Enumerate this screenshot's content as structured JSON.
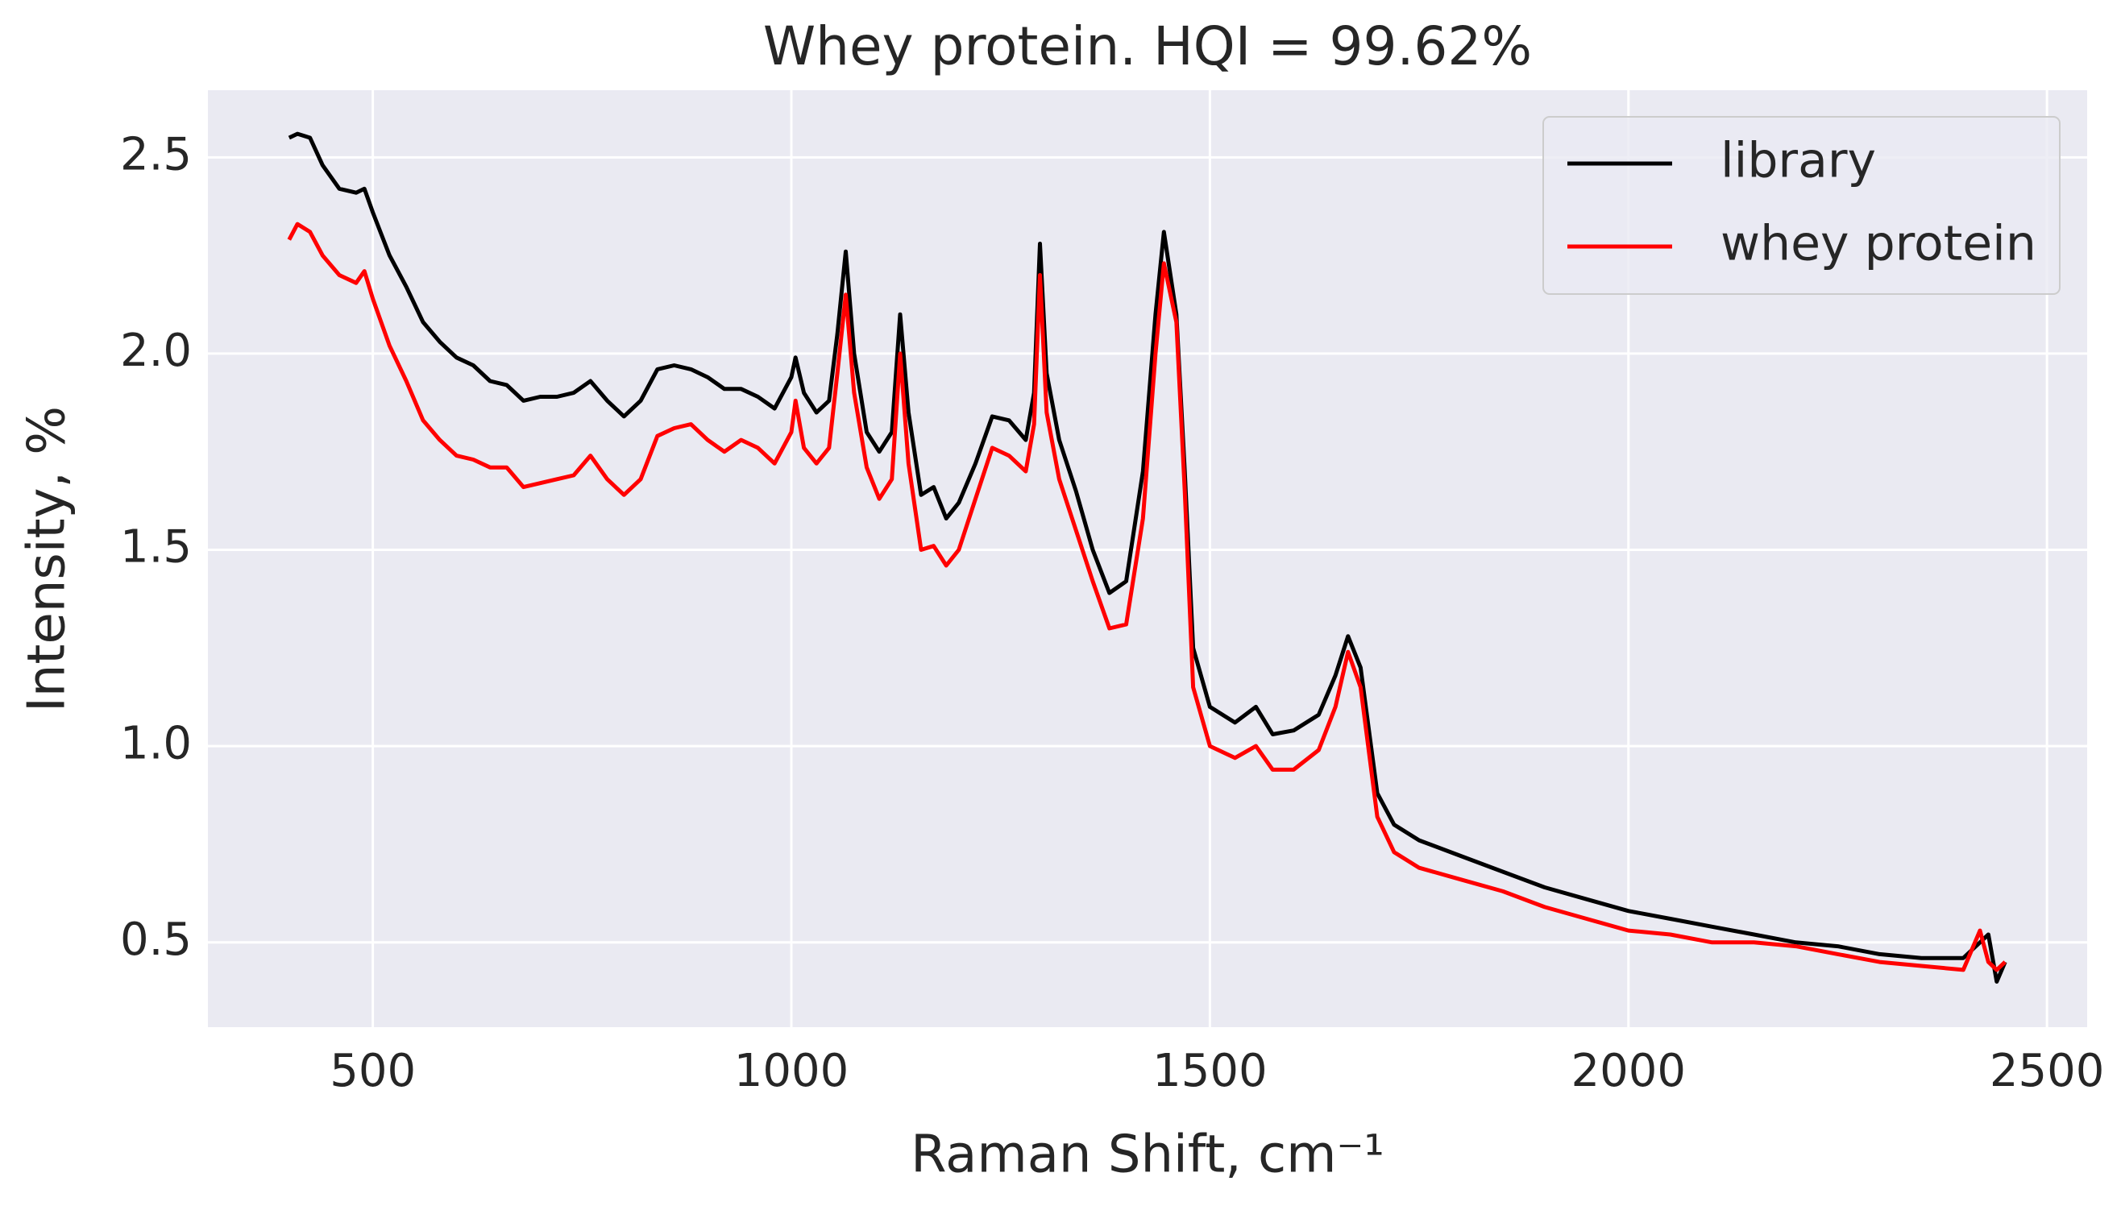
{
  "chart_data": {
    "type": "line",
    "title": "Whey protein. HQI = 99.62%",
    "xlabel": "Raman Shift, cm⁻¹",
    "ylabel": "Intensity, %",
    "x": [
      400,
      410,
      425,
      440,
      460,
      480,
      490,
      500,
      520,
      540,
      560,
      580,
      600,
      620,
      640,
      660,
      680,
      700,
      720,
      740,
      760,
      780,
      800,
      820,
      840,
      860,
      880,
      900,
      920,
      940,
      960,
      980,
      1000,
      1005,
      1015,
      1030,
      1045,
      1055,
      1065,
      1075,
      1090,
      1105,
      1120,
      1130,
      1140,
      1155,
      1170,
      1185,
      1200,
      1220,
      1240,
      1260,
      1280,
      1290,
      1297,
      1305,
      1320,
      1340,
      1360,
      1380,
      1400,
      1420,
      1435,
      1445,
      1460,
      1470,
      1480,
      1500,
      1530,
      1555,
      1575,
      1600,
      1630,
      1650,
      1665,
      1680,
      1700,
      1720,
      1750,
      1800,
      1850,
      1900,
      1950,
      2000,
      2050,
      2100,
      2150,
      2200,
      2250,
      2300,
      2350,
      2400,
      2420,
      2430,
      2440,
      2450
    ],
    "series": [
      {
        "name": "library",
        "color": "#000000",
        "values": [
          2.55,
          2.56,
          2.55,
          2.48,
          2.42,
          2.41,
          2.42,
          2.36,
          2.25,
          2.17,
          2.08,
          2.03,
          1.99,
          1.97,
          1.93,
          1.92,
          1.88,
          1.89,
          1.89,
          1.9,
          1.93,
          1.88,
          1.84,
          1.88,
          1.96,
          1.97,
          1.96,
          1.94,
          1.91,
          1.91,
          1.89,
          1.86,
          1.94,
          1.99,
          1.9,
          1.85,
          1.88,
          2.05,
          2.26,
          2.0,
          1.8,
          1.75,
          1.8,
          2.1,
          1.85,
          1.64,
          1.66,
          1.58,
          1.62,
          1.72,
          1.84,
          1.83,
          1.78,
          1.9,
          2.28,
          1.95,
          1.78,
          1.65,
          1.5,
          1.39,
          1.42,
          1.7,
          2.1,
          2.31,
          2.1,
          1.7,
          1.25,
          1.1,
          1.06,
          1.1,
          1.03,
          1.04,
          1.08,
          1.18,
          1.28,
          1.2,
          0.88,
          0.8,
          0.76,
          0.72,
          0.68,
          0.64,
          0.61,
          0.58,
          0.56,
          0.54,
          0.52,
          0.5,
          0.49,
          0.47,
          0.46,
          0.46,
          0.5,
          0.52,
          0.4,
          0.45
        ]
      },
      {
        "name": "whey protein",
        "color": "#ff0000",
        "values": [
          2.29,
          2.33,
          2.31,
          2.25,
          2.2,
          2.18,
          2.21,
          2.14,
          2.02,
          1.93,
          1.83,
          1.78,
          1.74,
          1.73,
          1.71,
          1.71,
          1.66,
          1.67,
          1.68,
          1.69,
          1.74,
          1.68,
          1.64,
          1.68,
          1.79,
          1.81,
          1.82,
          1.78,
          1.75,
          1.78,
          1.76,
          1.72,
          1.8,
          1.88,
          1.76,
          1.72,
          1.76,
          1.95,
          2.15,
          1.9,
          1.71,
          1.63,
          1.68,
          2.0,
          1.72,
          1.5,
          1.51,
          1.46,
          1.5,
          1.63,
          1.76,
          1.74,
          1.7,
          1.82,
          2.2,
          1.85,
          1.68,
          1.55,
          1.42,
          1.3,
          1.31,
          1.58,
          2.0,
          2.23,
          2.08,
          1.65,
          1.15,
          1.0,
          0.97,
          1.0,
          0.94,
          0.94,
          0.99,
          1.1,
          1.24,
          1.15,
          0.82,
          0.73,
          0.69,
          0.66,
          0.63,
          0.59,
          0.56,
          0.53,
          0.52,
          0.5,
          0.5,
          0.49,
          0.47,
          0.45,
          0.44,
          0.43,
          0.53,
          0.45,
          0.43,
          0.45
        ]
      }
    ],
    "xlim": [
      303,
      2548
    ],
    "ylim": [
      0.284,
      2.671
    ],
    "xticks": [
      500,
      1000,
      1500,
      2000,
      2500
    ],
    "yticks": [
      0.5,
      {
        "value": 1,
        "label": "1.0"
      },
      1.5,
      {
        "value": 2,
        "label": "2.0"
      },
      2.5
    ],
    "grid": true,
    "legend": "upper right"
  }
}
